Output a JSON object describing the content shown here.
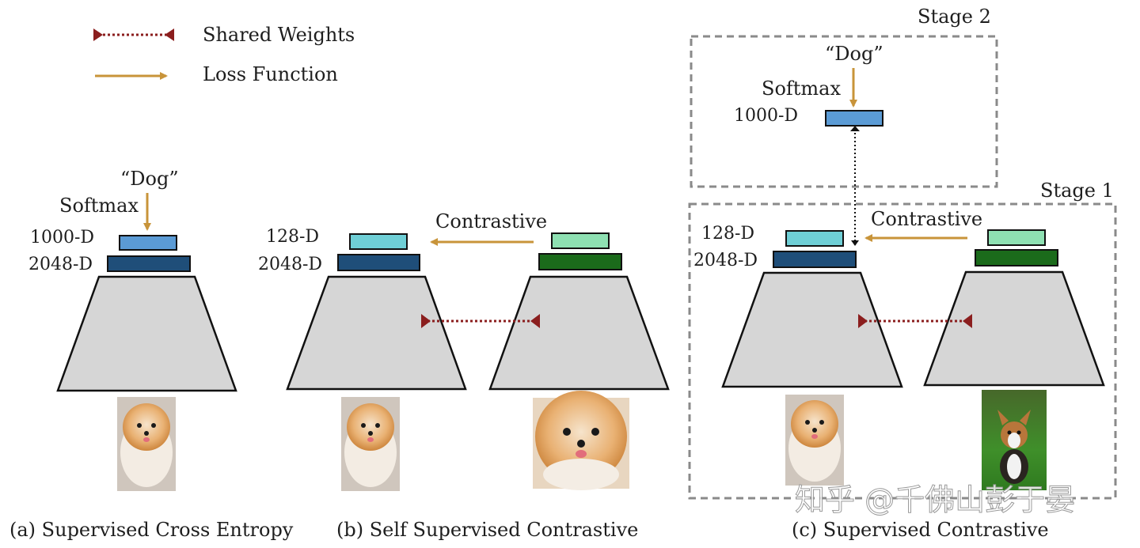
{
  "legend": {
    "shared_weights": "Shared Weights",
    "loss_function": "Loss Function"
  },
  "labels": {
    "dog": "“Dog”",
    "softmax": "Softmax",
    "d1000": "1000-D",
    "d2048": "2048-D",
    "d128": "128-D",
    "contrastive": "Contrastive",
    "stage1": "Stage 1",
    "stage2": "Stage 2"
  },
  "captions": {
    "a": "(a) Supervised Cross Entropy",
    "b": "(b) Self Supervised Contrastive",
    "c": "(c) Supervised Contrastive"
  },
  "watermark": "知乎 @千佛山彭于晏",
  "colors": {
    "blue_light": "#5b9bd5",
    "blue_dark": "#1f4e79",
    "teal": "#6fcfd6",
    "green_light": "#8ee0b2",
    "green_dark": "#1b6b1b",
    "trapezoid": "#d6d6d6",
    "loss_arrow": "#c8943a",
    "shared_weights": "#8b1e1e",
    "dashed_box": "#8a8a8a"
  }
}
